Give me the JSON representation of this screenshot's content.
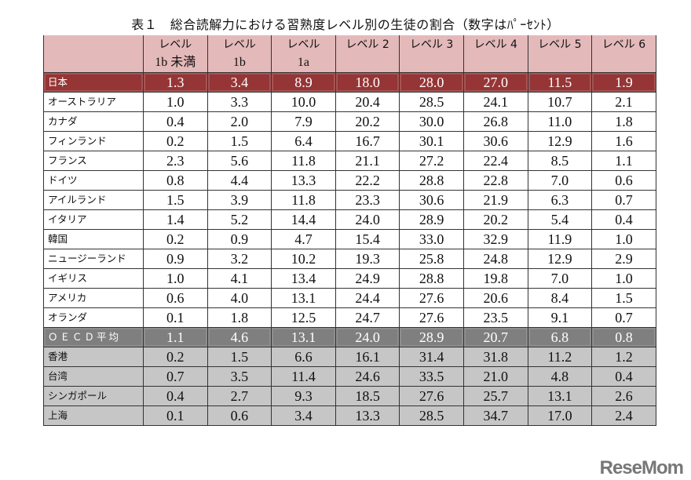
{
  "title": "表１　総合読解力における習熟度レベル別の生徒の割合（数字はﾊﾟｰｾﾝﾄ）",
  "columns": [
    {
      "line1": "レベル",
      "line2": "1b 未満"
    },
    {
      "line1": "レベル",
      "line2": "1b"
    },
    {
      "line1": "レベル",
      "line2": "1a"
    },
    {
      "line1": "レベル 2",
      "line2": ""
    },
    {
      "line1": "レベル 3",
      "line2": ""
    },
    {
      "line1": "レベル 4",
      "line2": ""
    },
    {
      "line1": "レベル 5",
      "line2": ""
    },
    {
      "line1": "レベル 6",
      "line2": ""
    }
  ],
  "colors": {
    "japan": "#963536",
    "header": "#e4b9ba",
    "oecd": "#7f7f7f",
    "asia": "#c6c6c6"
  },
  "rows": [
    {
      "name": "日本",
      "style": "japan",
      "values": [
        "1.3",
        "3.4",
        "8.9",
        "18.0",
        "28.0",
        "27.0",
        "11.5",
        "1.9"
      ]
    },
    {
      "name": "オーストラリア",
      "style": "",
      "values": [
        "1.0",
        "3.3",
        "10.0",
        "20.4",
        "28.5",
        "24.1",
        "10.7",
        "2.1"
      ]
    },
    {
      "name": "カナダ",
      "style": "",
      "values": [
        "0.4",
        "2.0",
        "7.9",
        "20.2",
        "30.0",
        "26.8",
        "11.0",
        "1.8"
      ]
    },
    {
      "name": "フィンランド",
      "style": "",
      "values": [
        "0.2",
        "1.5",
        "6.4",
        "16.7",
        "30.1",
        "30.6",
        "12.9",
        "1.6"
      ]
    },
    {
      "name": "フランス",
      "style": "",
      "values": [
        "2.3",
        "5.6",
        "11.8",
        "21.1",
        "27.2",
        "22.4",
        "8.5",
        "1.1"
      ]
    },
    {
      "name": "ドイツ",
      "style": "",
      "values": [
        "0.8",
        "4.4",
        "13.3",
        "22.2",
        "28.8",
        "22.8",
        "7.0",
        "0.6"
      ]
    },
    {
      "name": "アイルランド",
      "style": "",
      "values": [
        "1.5",
        "3.9",
        "11.8",
        "23.3",
        "30.6",
        "21.9",
        "6.3",
        "0.7"
      ]
    },
    {
      "name": "イタリア",
      "style": "",
      "values": [
        "1.4",
        "5.2",
        "14.4",
        "24.0",
        "28.9",
        "20.2",
        "5.4",
        "0.4"
      ]
    },
    {
      "name": "韓国",
      "style": "",
      "values": [
        "0.2",
        "0.9",
        "4.7",
        "15.4",
        "33.0",
        "32.9",
        "11.9",
        "1.0"
      ]
    },
    {
      "name": "ニュージーランド",
      "style": "",
      "values": [
        "0.9",
        "3.2",
        "10.2",
        "19.3",
        "25.8",
        "24.8",
        "12.9",
        "2.9"
      ]
    },
    {
      "name": "イギリス",
      "style": "",
      "values": [
        "1.0",
        "4.1",
        "13.4",
        "24.9",
        "28.8",
        "19.8",
        "7.0",
        "1.0"
      ]
    },
    {
      "name": "アメリカ",
      "style": "",
      "values": [
        "0.6",
        "4.0",
        "13.1",
        "24.4",
        "27.6",
        "20.6",
        "8.4",
        "1.5"
      ]
    },
    {
      "name": "オランダ",
      "style": "",
      "values": [
        "0.1",
        "1.8",
        "12.5",
        "24.7",
        "27.6",
        "23.5",
        "9.1",
        "0.7"
      ]
    },
    {
      "name": "ＯＥＣＤ平均",
      "style": "oecd",
      "values": [
        "1.1",
        "4.6",
        "13.1",
        "24.0",
        "28.9",
        "20.7",
        "6.8",
        "0.8"
      ]
    },
    {
      "name": "香港",
      "style": "asia",
      "values": [
        "0.2",
        "1.5",
        "6.6",
        "16.1",
        "31.4",
        "31.8",
        "11.2",
        "1.2"
      ]
    },
    {
      "name": "台湾",
      "style": "asia",
      "values": [
        "0.7",
        "3.5",
        "11.4",
        "24.6",
        "33.5",
        "21.0",
        "4.8",
        "0.4"
      ]
    },
    {
      "name": "シンガポール",
      "style": "asia",
      "values": [
        "0.4",
        "2.7",
        "9.3",
        "18.5",
        "27.6",
        "25.7",
        "13.1",
        "2.6"
      ]
    },
    {
      "name": "上海",
      "style": "asia",
      "values": [
        "0.1",
        "0.6",
        "3.4",
        "13.3",
        "28.5",
        "34.7",
        "17.0",
        "2.4"
      ]
    }
  ],
  "watermark": "ReseMom"
}
